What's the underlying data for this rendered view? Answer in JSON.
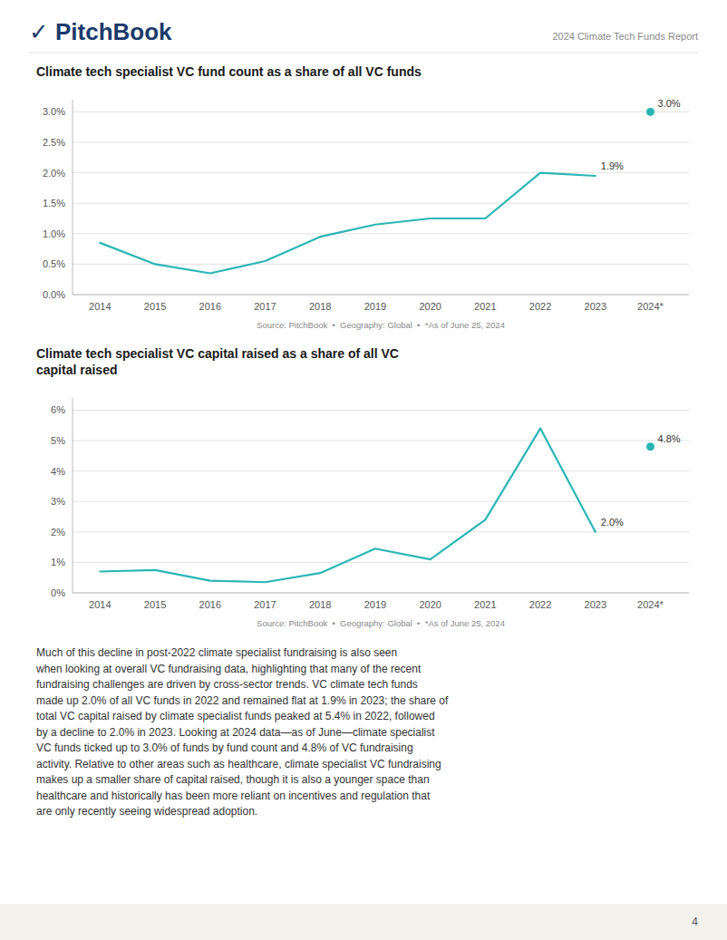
{
  "logo_text": "✓ PitchBook",
  "header_text": "2024 Climate Tech Funds Report",
  "body_text": "Much of this decline in post-2022 climate specialist fundraising is also seen\nwhen looking at overall VC fundraising data, highlighting that many of the recent\nfundraising challenges are driven by cross-sector trends. VC climate tech funds\nmade up 2.0% of all VC funds in 2022 and remained flat at 1.9% in 2023; the share of\ntotal VC capital raised by climate specialist funds peaked at 5.4% in 2022, followed\nby a decline to 2.0% in 2023. Looking at 2024 data—as of June—climate specialist\nVC funds ticked up to 3.0% of funds by fund count and 4.8% of VC fundraising\nactivity. Relative to other areas such as healthcare, climate specialist VC fundraising\nmakes up a smaller share of capital raised, though it is also a younger space than\nhealthcare and historically has been more reliant on incentives and regulation that\nare only recently seeing widespread adoption.",
  "page_number": "4",
  "chart_data": [
    {
      "type": "line",
      "title": "Climate tech specialist VC fund count as a share of all VC funds",
      "source": "Source: PitchBook  •  Geography: Global  •  *As of June 25, 2024",
      "series": [
        {
          "type": "line",
          "color": "#2ab5b5",
          "x": [
            2014,
            2015,
            2016,
            2017,
            2018,
            2019,
            2020,
            2021,
            2022,
            2023
          ],
          "values": [
            0.85,
            0.5,
            0.35,
            0.55,
            0.95,
            1.15,
            1.25,
            1.25,
            2.0,
            1.95
          ],
          "data_labels": true,
          "value_labels": [
            null,
            null,
            null,
            null,
            null,
            null,
            null,
            null,
            null,
            "1.9%"
          ]
        },
        {
          "type": "scatter",
          "color": "#2ab5b5",
          "marker": "circle",
          "x": [
            2024
          ],
          "values": [
            3.0
          ],
          "data_labels": true,
          "value_labels": [
            "3.0%"
          ]
        }
      ],
      "xlim": [
        2013.5,
        2024.7
      ],
      "xticks": [
        2014,
        2015,
        2016,
        2017,
        2018,
        2019,
        2020,
        2021,
        2022,
        2023,
        {
          "value": 2024,
          "label": "2024*"
        }
      ],
      "ylim": [
        0,
        3.2
      ],
      "yticks": [
        {
          "value": 0.0,
          "label": "0.0%"
        },
        {
          "value": 0.5,
          "label": "0.5%"
        },
        {
          "value": 1.0,
          "label": "1.0%"
        },
        {
          "value": 1.5,
          "label": "1.5%"
        },
        {
          "value": 2.0,
          "label": "2.0%"
        },
        {
          "value": 2.5,
          "label": "2.5%"
        },
        {
          "value": 3.0,
          "label": "3.0%"
        }
      ],
      "grid": true
    },
    {
      "type": "line",
      "title": "Climate tech specialist VC capital raised as a share of all VC\ncapital raised",
      "source": "Source: PitchBook  •  Geography: Global  •  *As of June 25, 2024",
      "series": [
        {
          "type": "line",
          "color": "#2ab5b5",
          "x": [
            2014,
            2015,
            2016,
            2017,
            2018,
            2019,
            2020,
            2021,
            2022,
            2023
          ],
          "values": [
            0.7,
            0.75,
            0.4,
            0.35,
            0.65,
            1.45,
            1.1,
            2.4,
            5.4,
            2.0
          ],
          "data_labels": true,
          "value_labels": [
            null,
            null,
            null,
            null,
            null,
            null,
            null,
            null,
            null,
            "2.0%"
          ]
        },
        {
          "type": "scatter",
          "color": "#2ab5b5",
          "marker": "circle",
          "x": [
            2024
          ],
          "values": [
            4.8
          ],
          "data_labels": true,
          "value_labels": [
            "4.8%"
          ]
        }
      ],
      "xlim": [
        2013.5,
        2024.7
      ],
      "xticks": [
        2014,
        2015,
        2016,
        2017,
        2018,
        2019,
        2020,
        2021,
        2022,
        2023,
        {
          "value": 2024,
          "label": "2024*"
        }
      ],
      "ylim": [
        0,
        6.4
      ],
      "yticks": [
        {
          "value": 0,
          "label": "0%"
        },
        {
          "value": 1,
          "label": "1%"
        },
        {
          "value": 2,
          "label": "2%"
        },
        {
          "value": 3,
          "label": "3%"
        },
        {
          "value": 4,
          "label": "4%"
        },
        {
          "value": 5,
          "label": "5%"
        },
        {
          "value": 6,
          "label": "6%"
        }
      ],
      "grid": true
    }
  ]
}
